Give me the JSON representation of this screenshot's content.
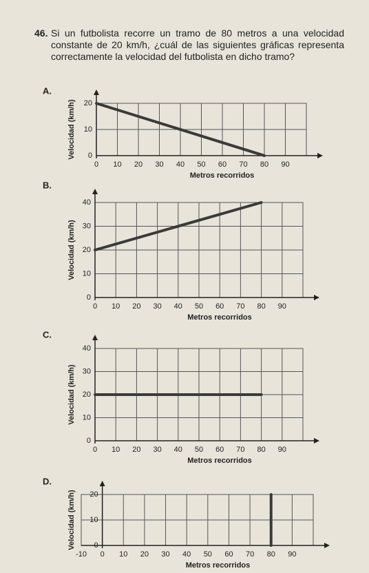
{
  "question": {
    "number": "46.",
    "text": "Si un futbolista recorre un tramo de 80 metros a una velocidad constante de 20 km/h, ¿cuál de las siguientes gráficas representa correctamente la velocidad del futbolista en dicho tramo?"
  },
  "chart_data": [
    {
      "type": "line",
      "label": "A.",
      "ylabel": "Velocidad (km/h)",
      "xlabel": "Metros recorridos",
      "x": [
        0,
        80
      ],
      "series": [
        {
          "color": "#3a3a3a",
          "values": [
            20,
            0
          ]
        }
      ],
      "xlim": [
        0,
        100
      ],
      "ylim": [
        0,
        20
      ],
      "xticks": [
        0,
        10,
        20,
        30,
        40,
        50,
        60,
        70,
        80,
        90
      ],
      "yticks": [
        0,
        10,
        20
      ],
      "grid": true
    },
    {
      "type": "line",
      "label": "B.",
      "ylabel": "Velocidad (km/h)",
      "xlabel": "Metros recorridos",
      "x": [
        0,
        80
      ],
      "series": [
        {
          "color": "#3a3a3a",
          "values": [
            20,
            40
          ]
        }
      ],
      "xlim": [
        0,
        100
      ],
      "ylim": [
        0,
        40
      ],
      "xticks": [
        0,
        10,
        20,
        30,
        40,
        50,
        60,
        70,
        80,
        90
      ],
      "yticks": [
        0,
        10,
        20,
        30,
        40
      ],
      "grid": true
    },
    {
      "type": "line",
      "label": "C.",
      "ylabel": "Velocidad (km/h)",
      "xlabel": "Metros recorridos",
      "x": [
        0,
        80
      ],
      "series": [
        {
          "color": "#3a3a3a",
          "values": [
            20,
            20
          ]
        }
      ],
      "xlim": [
        0,
        100
      ],
      "ylim": [
        0,
        40
      ],
      "xticks": [
        0,
        10,
        20,
        30,
        40,
        50,
        60,
        70,
        80,
        90
      ],
      "yticks": [
        0,
        10,
        20,
        30,
        40
      ],
      "grid": true
    },
    {
      "type": "line",
      "label": "D.",
      "ylabel": "Velocidad (km/h)",
      "xlabel": "Metros recorridos",
      "x": [
        80,
        80
      ],
      "series": [
        {
          "color": "#3a3a3a",
          "values": [
            0,
            20
          ]
        }
      ],
      "xlim": [
        -10,
        100
      ],
      "ylim": [
        0,
        20
      ],
      "xticks": [
        -10,
        0,
        10,
        20,
        30,
        40,
        50,
        60,
        70,
        80,
        90
      ],
      "yticks": [
        0,
        10,
        20
      ],
      "grid": true
    }
  ]
}
